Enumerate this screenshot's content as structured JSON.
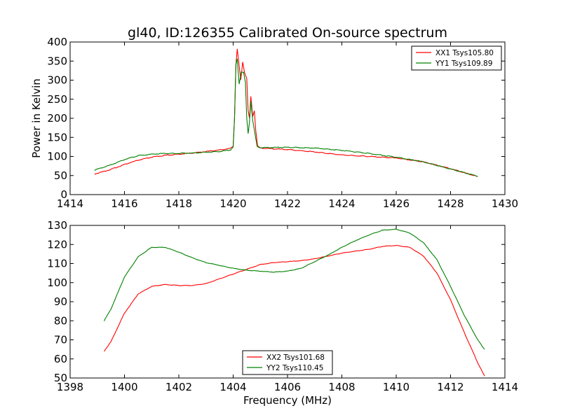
{
  "figure": {
    "title": "gl40, ID:126355 Calibrated On-source spectrum",
    "series_colors": {
      "red": "#ff0000",
      "green": "#008000"
    }
  },
  "chart_data": [
    {
      "type": "line",
      "title": "gl40, ID:126355 Calibrated On-source spectrum",
      "xlabel": "",
      "ylabel": "Power in Kelvin",
      "xlim": [
        1414,
        1430
      ],
      "ylim": [
        0,
        400
      ],
      "xticks": [
        1414,
        1416,
        1418,
        1420,
        1422,
        1424,
        1426,
        1428,
        1430
      ],
      "yticks": [
        0,
        50,
        100,
        150,
        200,
        250,
        300,
        350,
        400
      ],
      "grid": false,
      "legend_position": "top-right",
      "series": [
        {
          "name": "XX1 Tsys105.80",
          "color": "#ff0000",
          "points": [
            [
              1414.9,
              54
            ],
            [
              1415.5,
              66
            ],
            [
              1416,
              79
            ],
            [
              1416.5,
              90
            ],
            [
              1417,
              98
            ],
            [
              1417.5,
              103
            ],
            [
              1418,
              106
            ],
            [
              1418.5,
              109
            ],
            [
              1419,
              113
            ],
            [
              1419.5,
              117
            ],
            [
              1419.9,
              121
            ],
            [
              1420.0,
              128
            ],
            [
              1420.05,
              200
            ],
            [
              1420.1,
              340
            ],
            [
              1420.15,
              381
            ],
            [
              1420.2,
              350
            ],
            [
              1420.28,
              300
            ],
            [
              1420.35,
              348
            ],
            [
              1420.42,
              320
            ],
            [
              1420.5,
              305
            ],
            [
              1420.55,
              220
            ],
            [
              1420.6,
              200
            ],
            [
              1420.65,
              257
            ],
            [
              1420.72,
              205
            ],
            [
              1420.78,
              220
            ],
            [
              1420.83,
              170
            ],
            [
              1420.9,
              127
            ],
            [
              1421,
              122
            ],
            [
              1422,
              118
            ],
            [
              1423,
              112
            ],
            [
              1424,
              104
            ],
            [
              1425,
              100
            ],
            [
              1426,
              96
            ],
            [
              1427,
              86
            ],
            [
              1428,
              68
            ],
            [
              1429,
              47
            ]
          ]
        },
        {
          "name": "YY1 Tsys109.89",
          "color": "#008000",
          "points": [
            [
              1414.9,
              64
            ],
            [
              1415.5,
              78
            ],
            [
              1416,
              92
            ],
            [
              1416.5,
              102
            ],
            [
              1417,
              106
            ],
            [
              1417.5,
              108
            ],
            [
              1418,
              108
            ],
            [
              1418.5,
              109
            ],
            [
              1419,
              111
            ],
            [
              1419.5,
              113
            ],
            [
              1419.9,
              117
            ],
            [
              1420.0,
              125
            ],
            [
              1420.05,
              200
            ],
            [
              1420.1,
              340
            ],
            [
              1420.15,
              355
            ],
            [
              1420.22,
              290
            ],
            [
              1420.3,
              322
            ],
            [
              1420.38,
              320
            ],
            [
              1420.45,
              295
            ],
            [
              1420.5,
              200
            ],
            [
              1420.55,
              160
            ],
            [
              1420.6,
              190
            ],
            [
              1420.65,
              245
            ],
            [
              1420.72,
              195
            ],
            [
              1420.8,
              160
            ],
            [
              1420.88,
              126
            ],
            [
              1421,
              123
            ],
            [
              1422,
              124
            ],
            [
              1423,
              122
            ],
            [
              1424,
              116
            ],
            [
              1425,
              108
            ],
            [
              1426,
              98
            ],
            [
              1427,
              86
            ],
            [
              1428,
              67
            ],
            [
              1429,
              48
            ]
          ]
        }
      ]
    },
    {
      "type": "line",
      "xlabel": "Frequency (MHz)",
      "ylabel": "",
      "xlim": [
        1398,
        1414
      ],
      "ylim": [
        50,
        130
      ],
      "xticks": [
        1398,
        1400,
        1402,
        1404,
        1406,
        1408,
        1410,
        1412,
        1414
      ],
      "yticks": [
        50,
        60,
        70,
        80,
        90,
        100,
        110,
        120,
        130
      ],
      "grid": false,
      "legend_position": "bottom-center",
      "series": [
        {
          "name": "XX2 Tsys101.68",
          "color": "#ff0000",
          "points": [
            [
              1399.25,
              64
            ],
            [
              1399.5,
              69
            ],
            [
              1400,
              84
            ],
            [
              1400.5,
              94
            ],
            [
              1401,
              98
            ],
            [
              1401.5,
              99
            ],
            [
              1402,
              98.5
            ],
            [
              1402.5,
              98.5
            ],
            [
              1403,
              99.5
            ],
            [
              1403.5,
              102
            ],
            [
              1404,
              104.5
            ],
            [
              1404.5,
              107
            ],
            [
              1405,
              109.5
            ],
            [
              1405.5,
              110.5
            ],
            [
              1406,
              111
            ],
            [
              1406.5,
              111.5
            ],
            [
              1407,
              112.5
            ],
            [
              1407.5,
              114
            ],
            [
              1408,
              115.5
            ],
            [
              1408.5,
              116.5
            ],
            [
              1409,
              117.5
            ],
            [
              1409.5,
              119
            ],
            [
              1410,
              119.5
            ],
            [
              1410.5,
              118.5
            ],
            [
              1411,
              114
            ],
            [
              1411.5,
              105
            ],
            [
              1412,
              91
            ],
            [
              1412.5,
              74
            ],
            [
              1413,
              58
            ],
            [
              1413.25,
              51
            ]
          ]
        },
        {
          "name": "YY2 Tsys110.45",
          "color": "#008000",
          "points": [
            [
              1399.25,
              80
            ],
            [
              1399.5,
              86
            ],
            [
              1400,
              103
            ],
            [
              1400.5,
              113.5
            ],
            [
              1401,
              118.5
            ],
            [
              1401.5,
              118.5
            ],
            [
              1402,
              116
            ],
            [
              1402.5,
              113
            ],
            [
              1403,
              110.5
            ],
            [
              1403.5,
              109
            ],
            [
              1404,
              107.5
            ],
            [
              1404.5,
              106.5
            ],
            [
              1405,
              106
            ],
            [
              1405.5,
              105.5
            ],
            [
              1406,
              106
            ],
            [
              1406.5,
              107.5
            ],
            [
              1407,
              111
            ],
            [
              1407.5,
              114.5
            ],
            [
              1408,
              118.5
            ],
            [
              1408.5,
              122
            ],
            [
              1409,
              125
            ],
            [
              1409.5,
              127.5
            ],
            [
              1410,
              128
            ],
            [
              1410.5,
              126
            ],
            [
              1411,
              121
            ],
            [
              1411.5,
              112
            ],
            [
              1412,
              98
            ],
            [
              1412.5,
              83
            ],
            [
              1413,
              70
            ],
            [
              1413.25,
              65
            ]
          ]
        }
      ]
    }
  ]
}
